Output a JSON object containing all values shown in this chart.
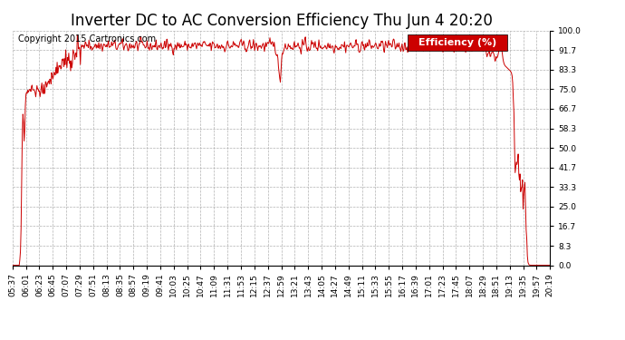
{
  "title": "Inverter DC to AC Conversion Efficiency Thu Jun 4 20:20",
  "copyright": "Copyright 2015 Cartronics.com",
  "legend_label": "Efficiency (%)",
  "legend_bg": "#cc0000",
  "legend_text_color": "#ffffff",
  "line_color": "#cc0000",
  "background_color": "#ffffff",
  "grid_color": "#aaaaaa",
  "ylim": [
    0.0,
    100.0
  ],
  "yticks": [
    0.0,
    8.3,
    16.7,
    25.0,
    33.3,
    41.7,
    50.0,
    58.3,
    66.7,
    75.0,
    83.3,
    91.7,
    100.0
  ],
  "xtick_labels": [
    "05:37",
    "06:01",
    "06:23",
    "06:45",
    "07:07",
    "07:29",
    "07:51",
    "08:13",
    "08:35",
    "08:57",
    "09:19",
    "09:41",
    "10:03",
    "10:25",
    "10:47",
    "11:09",
    "11:31",
    "11:53",
    "12:15",
    "12:37",
    "12:59",
    "13:21",
    "13:43",
    "14:05",
    "14:27",
    "14:49",
    "15:11",
    "15:33",
    "15:55",
    "16:17",
    "16:39",
    "17:01",
    "17:23",
    "17:45",
    "18:07",
    "18:29",
    "18:51",
    "19:13",
    "19:35",
    "19:57",
    "20:19"
  ],
  "title_fontsize": 12,
  "copyright_fontsize": 7,
  "tick_fontsize": 6.5,
  "legend_fontsize": 8
}
